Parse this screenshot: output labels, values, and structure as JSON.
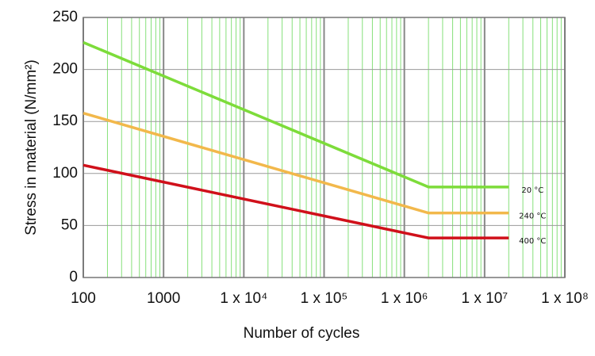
{
  "chart_data": {
    "type": "line",
    "xlabel": "Number of cycles",
    "ylabel": "Stress in material (N/mm²)",
    "xscale": "log",
    "x": [
      100,
      2000000,
      20000000
    ],
    "series": [
      {
        "name": "20 °C",
        "color": "#7ddc3a",
        "values": [
          226,
          87,
          87
        ]
      },
      {
        "name": "240 °C",
        "color": "#f2b84b",
        "values": [
          158,
          62,
          62
        ]
      },
      {
        "name": "400 °C",
        "color": "#d0101a",
        "values": [
          108,
          38,
          38
        ]
      }
    ],
    "xlim": [
      100,
      100000000
    ],
    "xticks": [
      100,
      1000,
      {
        "value": 10000,
        "label": "1 x 10⁴"
      },
      {
        "value": 100000,
        "label": "1 x 10⁵"
      },
      {
        "value": 1000000,
        "label": "1 x 10⁶"
      },
      {
        "value": 10000000,
        "label": "1 x 10⁷"
      },
      {
        "value": 100000000,
        "label": "1 x 10⁸"
      }
    ],
    "ylim": [
      0,
      250
    ],
    "yticks": [
      0,
      50,
      100,
      150,
      200,
      250
    ],
    "grid": true
  }
}
